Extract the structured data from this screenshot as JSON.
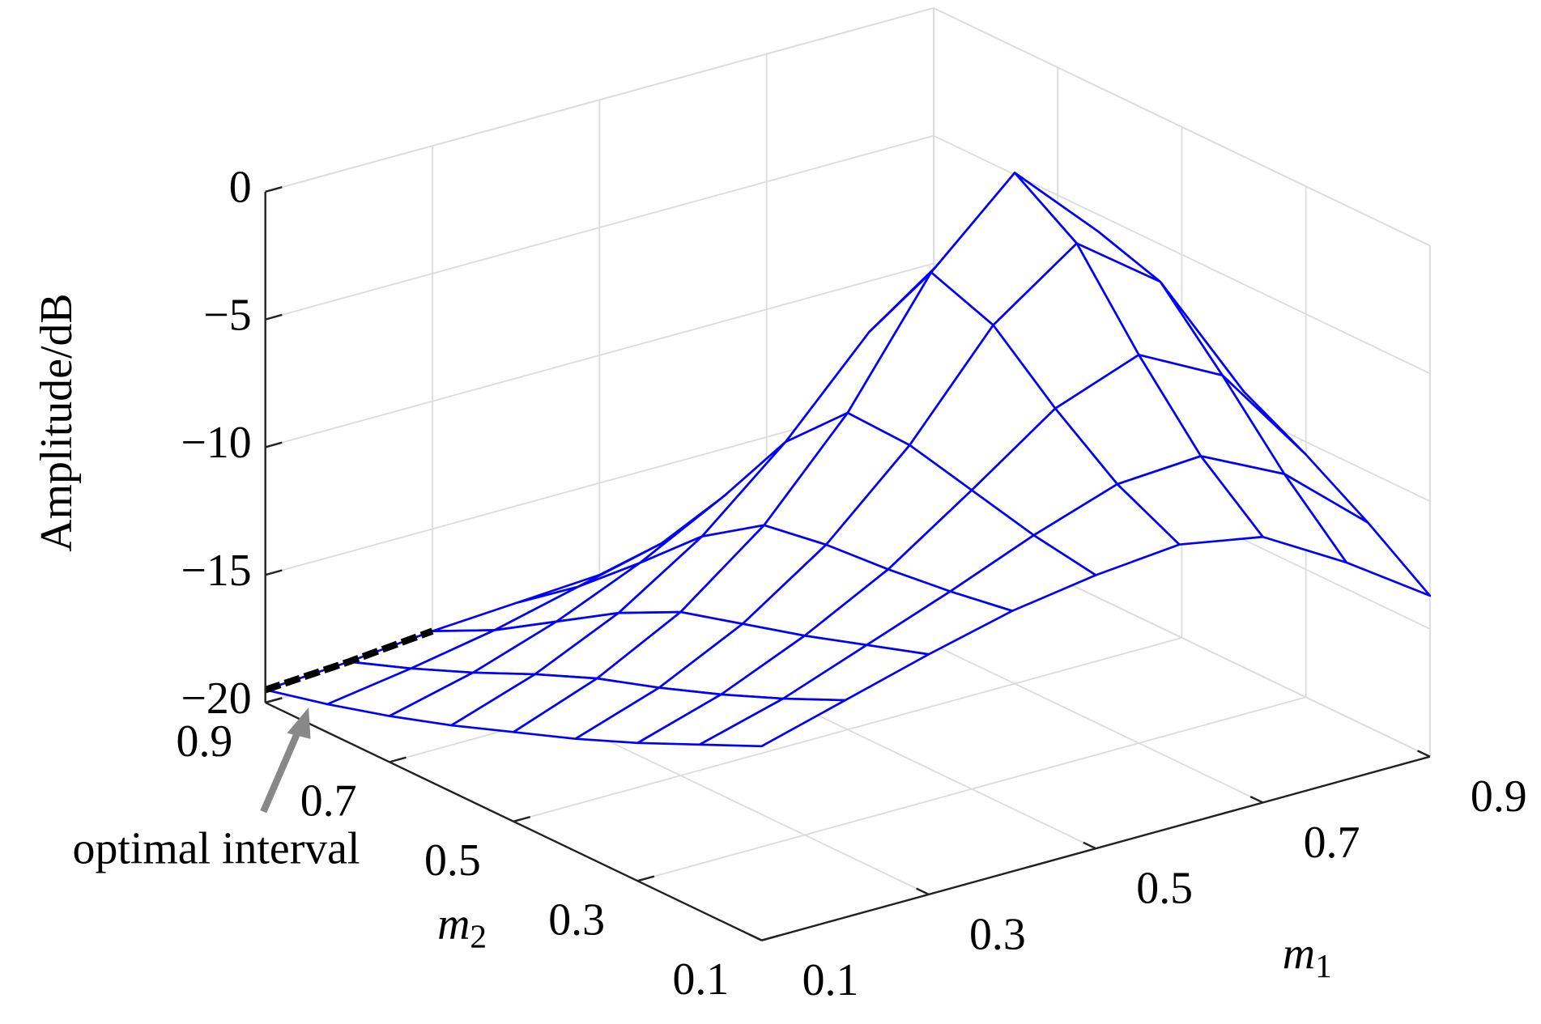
{
  "chart_data": {
    "type": "surface",
    "xlabel": {
      "base": "m",
      "sub": "1"
    },
    "ylabel": {
      "base": "m",
      "sub": "2"
    },
    "zlabel": "Amplitude/dB",
    "x": [
      0.1,
      0.2,
      0.3,
      0.4,
      0.5,
      0.6,
      0.7,
      0.8,
      0.9
    ],
    "y": [
      0.1,
      0.2,
      0.3,
      0.4,
      0.5,
      0.6,
      0.7,
      0.8,
      0.9
    ],
    "z": [
      [
        -12.4,
        -11.5,
        -10.6,
        -9.8,
        -9.3,
        -9.0,
        -9.6,
        -11.5,
        -13.7
      ],
      [
        -13.5,
        -12.6,
        -11.4,
        -10.2,
        -8.9,
        -7.8,
        -7.6,
        -9.2,
        -12.0
      ],
      [
        -14.6,
        -13.6,
        -12.2,
        -10.5,
        -8.3,
        -6.0,
        -4.8,
        -6.5,
        -10.5
      ],
      [
        -15.6,
        -14.5,
        -12.9,
        -10.7,
        -7.7,
        -3.9,
        -1.6,
        -4.0,
        -9.2
      ],
      [
        -16.5,
        -15.3,
        -13.6,
        -11.1,
        -7.6,
        -3.0,
        0.0,
        -3.2,
        -8.8
      ],
      [
        -17.4,
        -16.3,
        -14.8,
        -12.7,
        -9.9,
        -6.5,
        -4.2,
        -6.0,
        -10.0
      ],
      [
        -18.2,
        -17.4,
        -16.3,
        -14.9,
        -13.2,
        -11.4,
        -10.2,
        -10.8,
        -12.8
      ],
      [
        -18.9,
        -18.4,
        -17.8,
        -17.0,
        -16.2,
        -15.5,
        -15.0,
        -15.2,
        -16.0
      ],
      [
        -19.5,
        -19.3,
        -19.0,
        -18.8,
        -18.6,
        -18.4,
        -18.3,
        -18.2,
        -18.2
      ]
    ],
    "color": "#0000ff",
    "xlim": [
      0.1,
      0.9
    ],
    "ylim": [
      0.1,
      0.9
    ],
    "zlim": [
      -20,
      0
    ],
    "xticks": [
      0.1,
      0.3,
      0.5,
      0.7,
      0.9
    ],
    "yticks": [
      0.1,
      0.3,
      0.5,
      0.7,
      0.9
    ],
    "zticks": [
      {
        "value": -20,
        "label": "−20"
      },
      {
        "value": -15,
        "label": "−15"
      },
      {
        "value": -10,
        "label": "−10"
      },
      {
        "value": -5,
        "label": "−5"
      },
      {
        "value": 0,
        "label": "0"
      }
    ],
    "grid": true,
    "annotation": {
      "text": "optimal interval",
      "m1_range": [
        0.1,
        0.3
      ],
      "m2": 0.9
    }
  }
}
